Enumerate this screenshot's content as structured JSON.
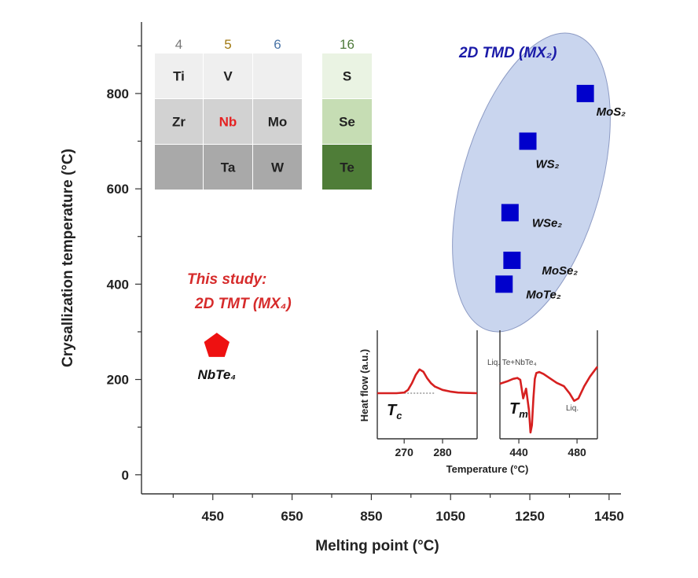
{
  "chart_data": {
    "type": "scatter",
    "xlabel": "Melting point (°C)",
    "ylabel": "Crysallization temperature (°C)",
    "xlim": [
      270,
      1480
    ],
    "ylim": [
      -40,
      950
    ],
    "x_ticks": [
      450,
      650,
      850,
      1050,
      1250,
      1450
    ],
    "y_ticks": [
      0,
      200,
      400,
      600,
      800
    ],
    "grid": false,
    "series": [
      {
        "name": "2D TMD (MX₂)",
        "marker": "square",
        "color": "#0000cc",
        "points": [
          {
            "label": "MoS₂",
            "x": 1390,
            "y": 800
          },
          {
            "label": "WS₂",
            "x": 1245,
            "y": 700
          },
          {
            "label": "WSe₂",
            "x": 1200,
            "y": 550
          },
          {
            "label": "MoSe₂",
            "x": 1205,
            "y": 450
          },
          {
            "label": "MoTe₂",
            "x": 1185,
            "y": 400
          }
        ]
      },
      {
        "name": "This study: 2D TMT (MX₄)",
        "marker": "pentagon",
        "color": "#ee1111",
        "points": [
          {
            "label": "NbTe₄",
            "x": 460,
            "y": 270
          }
        ]
      }
    ],
    "annotations": {
      "study_line1": "This study:",
      "study_line2": "2D TMT (MX₄)",
      "tmd_region": "2D TMD (MX₂)"
    },
    "periodic_table": {
      "group_numbers": [
        {
          "label": "4",
          "color": "#777777"
        },
        {
          "label": "5",
          "color": "#a07810"
        },
        {
          "label": "6",
          "color": "#4a74a6"
        },
        {
          "label": "16",
          "color": "#4e7a3a"
        }
      ],
      "cells": [
        {
          "symbol": "Ti",
          "col": 0,
          "row": 0,
          "fill": "#efefef",
          "text_color": "#222222"
        },
        {
          "symbol": "V",
          "col": 1,
          "row": 0,
          "fill": "#efefef",
          "text_color": "#222222"
        },
        {
          "symbol": "",
          "col": 2,
          "row": 0,
          "fill": "#efefef",
          "text_color": "#222222"
        },
        {
          "symbol": "Zr",
          "col": 0,
          "row": 1,
          "fill": "#d2d2d2",
          "text_color": "#222222"
        },
        {
          "symbol": "Nb",
          "col": 1,
          "row": 1,
          "fill": "#d2d2d2",
          "text_color": "#e52222"
        },
        {
          "symbol": "Mo",
          "col": 2,
          "row": 1,
          "fill": "#d2d2d2",
          "text_color": "#222222"
        },
        {
          "symbol": "",
          "col": 0,
          "row": 2,
          "fill": "#a9a9a9",
          "text_color": "#222222"
        },
        {
          "symbol": "Ta",
          "col": 1,
          "row": 2,
          "fill": "#a9a9a9",
          "text_color": "#222222"
        },
        {
          "symbol": "W",
          "col": 2,
          "row": 2,
          "fill": "#a9a9a9",
          "text_color": "#222222"
        },
        {
          "symbol": "S",
          "col": 3,
          "row": 0,
          "fill": "#eaf3e3",
          "text_color": "#222222"
        },
        {
          "symbol": "Se",
          "col": 3,
          "row": 1,
          "fill": "#c6ddb4",
          "text_color": "#222222"
        },
        {
          "symbol": "Te",
          "col": 3,
          "row": 2,
          "fill": "#4f7d38",
          "text_color": "#222222"
        }
      ]
    },
    "inset": {
      "type": "line",
      "ylabel": "Heat flow (a.u.)",
      "xlabel": "Temperature (°C)",
      "panels": [
        {
          "xlim": [
            263,
            289
          ],
          "x_ticks": [
            270,
            280
          ],
          "peak_label": "T",
          "peak_subscript": "c",
          "x": [
            263,
            268,
            270,
            271,
            272,
            273,
            274,
            275,
            276,
            277,
            278,
            280,
            282,
            284,
            286,
            289
          ],
          "y": [
            0.0,
            0.0,
            0.02,
            0.1,
            0.3,
            0.55,
            0.72,
            0.65,
            0.45,
            0.3,
            0.2,
            0.1,
            0.05,
            0.02,
            0.01,
            0.0
          ]
        },
        {
          "xlim": [
            427,
            494
          ],
          "x_ticks": [
            440,
            480
          ],
          "peak_label": "T",
          "peak_subscript": "m",
          "note_top": "Liq. Te+NbTe₄",
          "note_right": "Liq.",
          "x": [
            427,
            432,
            436,
            439,
            441,
            443,
            445,
            447,
            448,
            449,
            450,
            451,
            452,
            454,
            457,
            461,
            466,
            471,
            475,
            478,
            481,
            485,
            489,
            494
          ],
          "y": [
            0.0,
            0.05,
            0.1,
            0.12,
            0.08,
            -0.3,
            -0.1,
            -0.55,
            -1.0,
            -0.85,
            -0.3,
            0.1,
            0.22,
            0.24,
            0.2,
            0.12,
            0.02,
            -0.05,
            -0.2,
            -0.35,
            -0.3,
            -0.05,
            0.15,
            0.35
          ]
        }
      ]
    }
  }
}
